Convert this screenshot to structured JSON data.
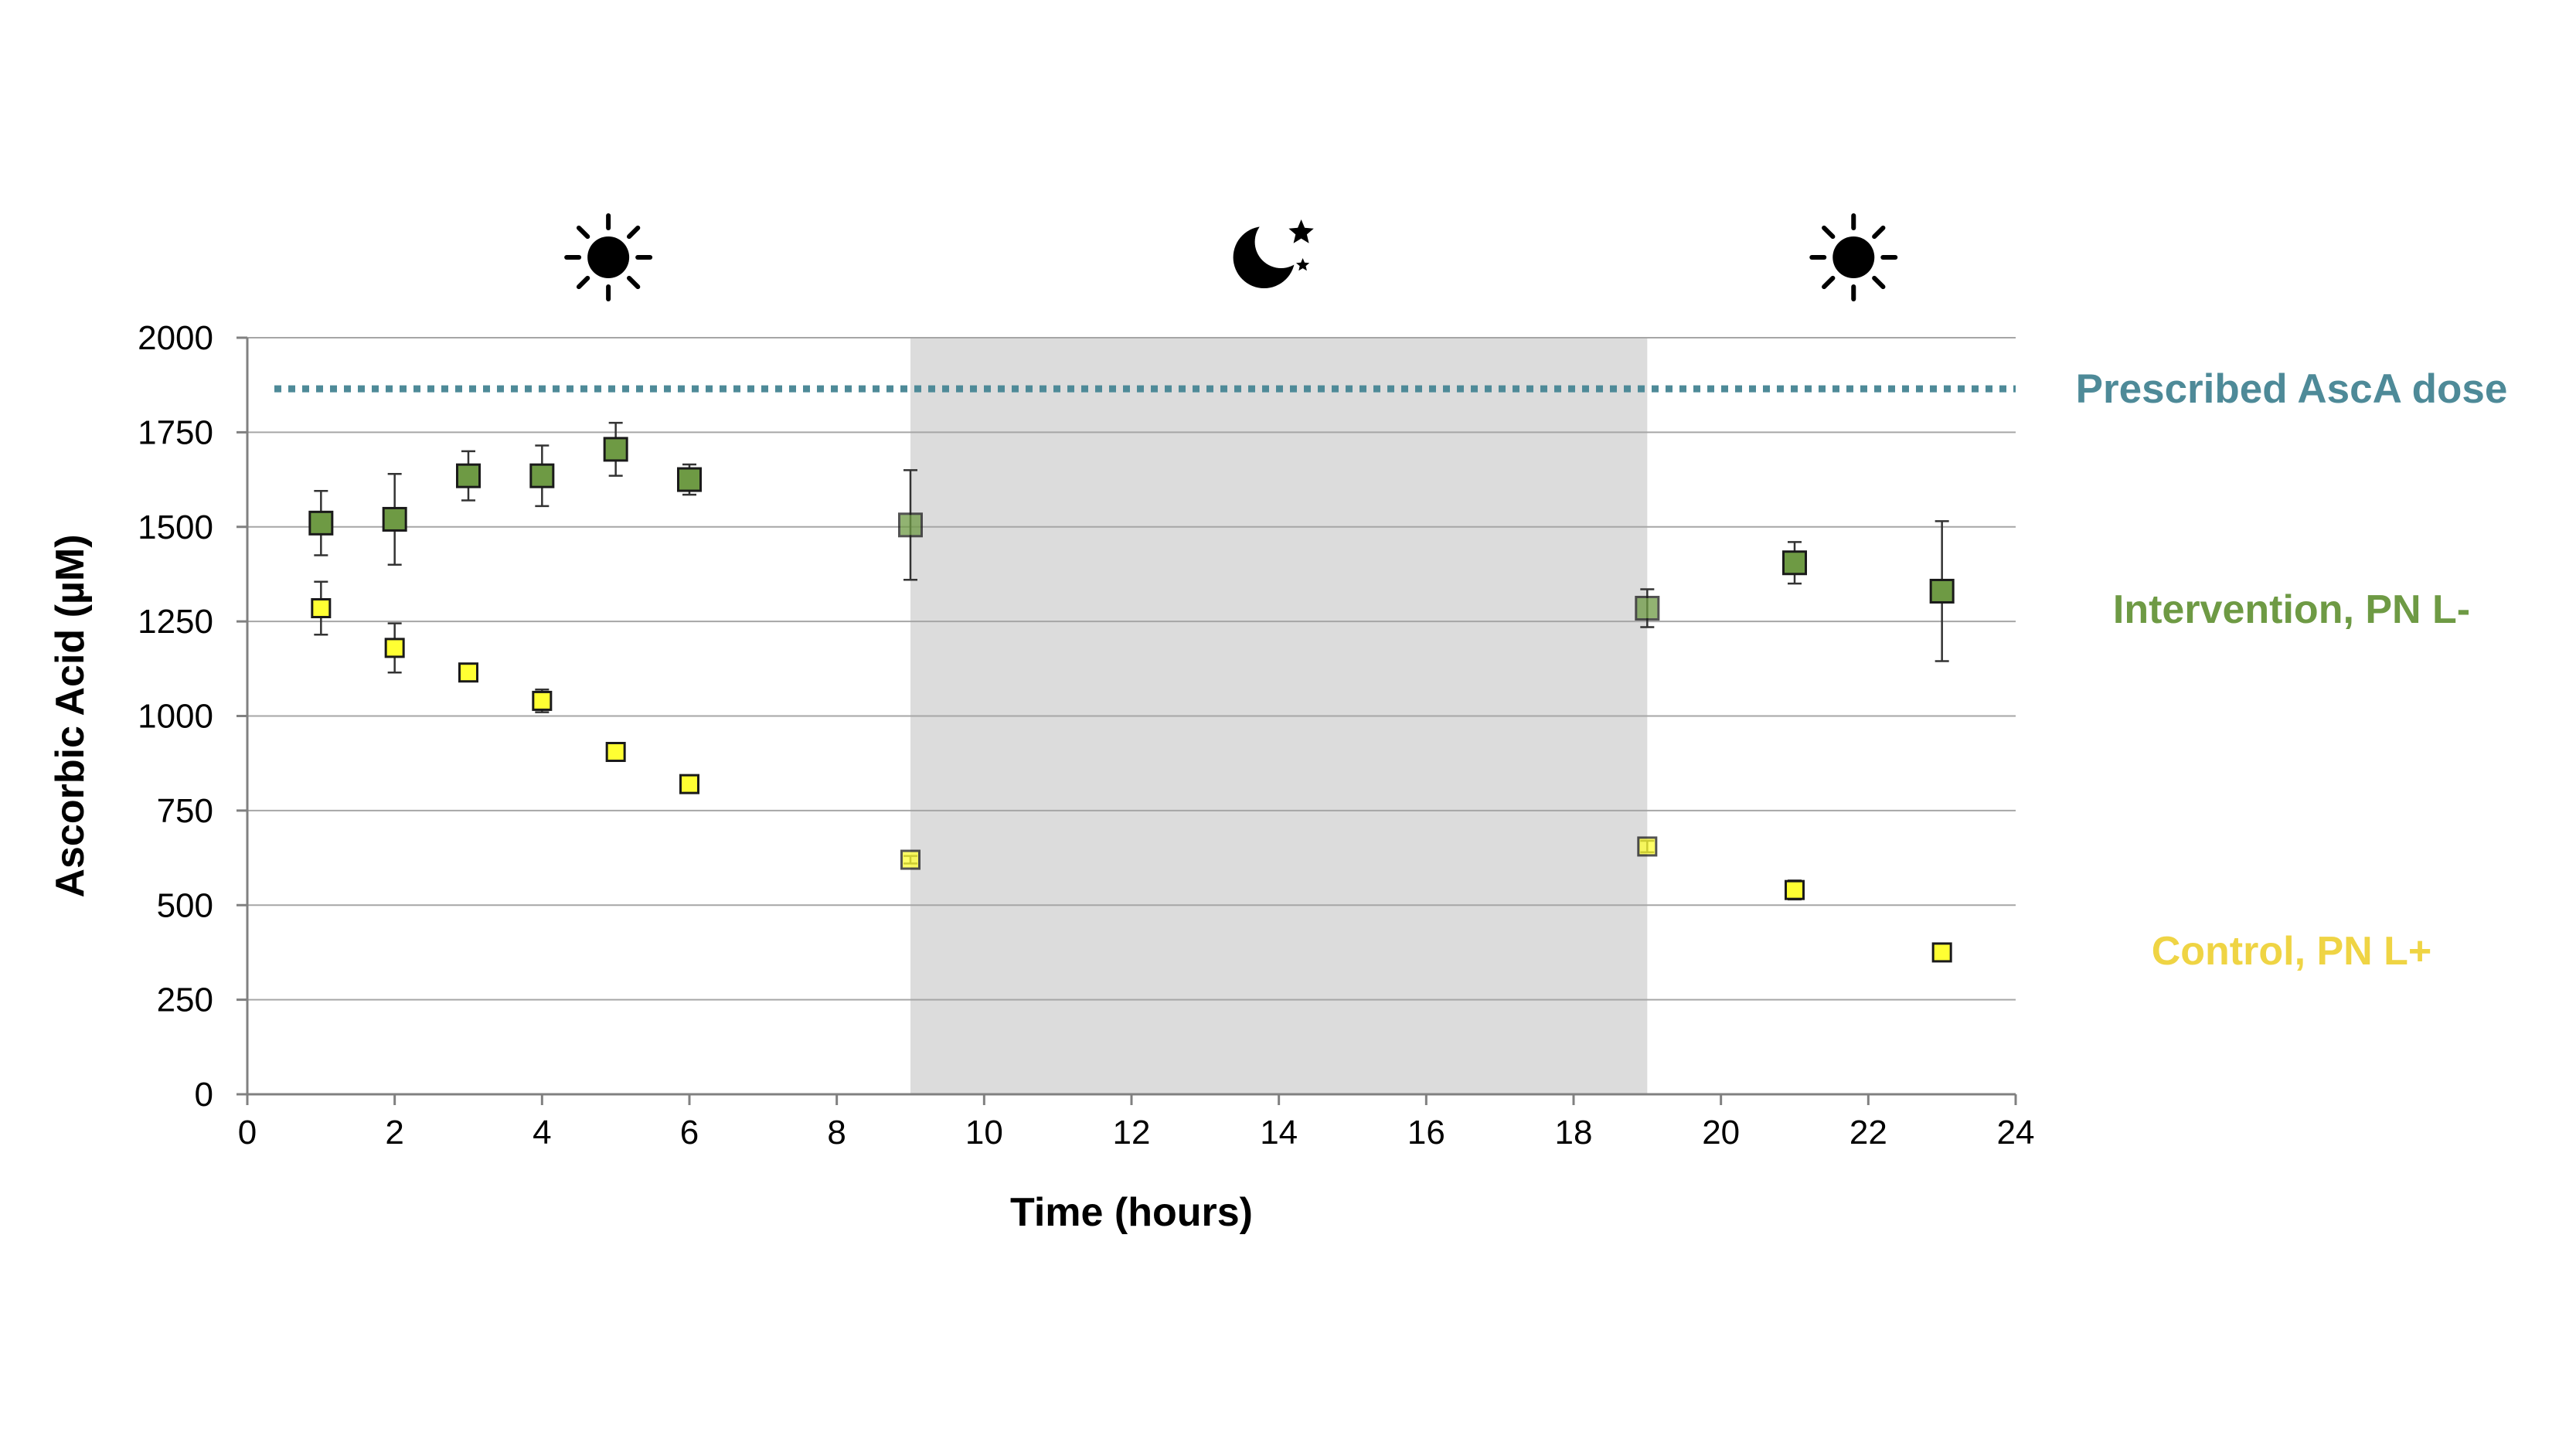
{
  "chart_data": {
    "type": "scatter",
    "title": "",
    "xlabel": "Time (hours)",
    "ylabel": "Ascorbic Acid (µM)",
    "xlim": [
      0,
      24
    ],
    "ylim": [
      0,
      2000
    ],
    "x_ticks": [
      0,
      2,
      4,
      6,
      8,
      10,
      12,
      14,
      16,
      18,
      20,
      22,
      24
    ],
    "y_ticks": [
      0,
      250,
      500,
      750,
      1000,
      1250,
      1500,
      1750,
      2000
    ],
    "grid": "horizontal",
    "night_band": {
      "x_start": 9,
      "x_end": 19,
      "color": "#dcdcdc"
    },
    "period_icons": [
      {
        "icon": "sun-icon",
        "x": 4.9
      },
      {
        "icon": "moon-stars-icon",
        "x": 13.8
      },
      {
        "icon": "sun-icon",
        "x": 21.8
      }
    ],
    "reference_line": {
      "name": "Prescribed AscA dose",
      "y": 1865,
      "color": "#4e8a98",
      "style": "dotted"
    },
    "series": [
      {
        "name": "Intervention, PN L-",
        "color": "#6e9a44",
        "marker": "square",
        "points": [
          {
            "x": 1,
            "y": 1510,
            "err": 85
          },
          {
            "x": 2,
            "y": 1520,
            "err": 120
          },
          {
            "x": 3,
            "y": 1635,
            "err": 65
          },
          {
            "x": 4,
            "y": 1635,
            "err": 80
          },
          {
            "x": 5,
            "y": 1705,
            "err": 70
          },
          {
            "x": 6,
            "y": 1625,
            "err": 40
          },
          {
            "x": 9,
            "y": 1505,
            "err": 145
          },
          {
            "x": 19,
            "y": 1285,
            "err": 50
          },
          {
            "x": 21,
            "y": 1405,
            "err": 55
          },
          {
            "x": 23,
            "y": 1330,
            "err": 185
          }
        ]
      },
      {
        "name": "Control, PN L+",
        "color": "#ffff33",
        "label_color": "#efd444",
        "marker": "square",
        "points": [
          {
            "x": 1,
            "y": 1285,
            "err": 70
          },
          {
            "x": 2,
            "y": 1180,
            "err": 65
          },
          {
            "x": 3,
            "y": 1115,
            "err": 10
          },
          {
            "x": 4,
            "y": 1040,
            "err": 30
          },
          {
            "x": 5,
            "y": 905,
            "err": 10
          },
          {
            "x": 6,
            "y": 820,
            "err": 10
          },
          {
            "x": 9,
            "y": 620,
            "err": 10
          },
          {
            "x": 19,
            "y": 655,
            "err": 15
          },
          {
            "x": 21,
            "y": 540,
            "err": 25
          },
          {
            "x": 23,
            "y": 375,
            "err": 10
          }
        ]
      }
    ]
  }
}
